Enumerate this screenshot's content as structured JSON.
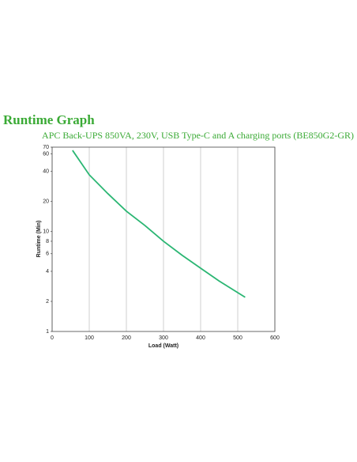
{
  "chart_data": {
    "type": "line",
    "title": "Runtime Graph",
    "subtitle": "APC Back-UPS 850VA, 230V, USB Type-C and A charging ports (BE850G2-GR)",
    "x_label": "Load (Watt)",
    "y_label": "Runtime (Min)",
    "x": [
      55,
      100,
      150,
      200,
      250,
      300,
      350,
      400,
      450,
      520
    ],
    "series": [
      {
        "name": "Runtime",
        "color": "#2bb673",
        "values": [
          65,
          37,
          24,
          16,
          11.5,
          8,
          5.8,
          4.3,
          3.2,
          2.2
        ]
      }
    ],
    "xlim": [
      0,
      600
    ],
    "xticks": [
      0,
      100,
      200,
      300,
      400,
      500,
      600
    ],
    "ylim": [
      1,
      70
    ],
    "yticks": [
      1,
      2,
      4,
      6,
      8,
      10,
      20,
      40,
      60,
      70
    ],
    "y_log": true,
    "grid": "x",
    "title_color": "#3aaa35"
  }
}
